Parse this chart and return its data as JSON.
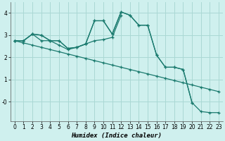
{
  "xlabel": "Humidex (Indice chaleur)",
  "bg_color": "#cff0ee",
  "grid_color": "#aad8d4",
  "line_color": "#1a7a6e",
  "x_values": [
    0,
    1,
    2,
    3,
    4,
    5,
    6,
    7,
    8,
    9,
    10,
    11,
    12,
    13,
    14,
    15,
    16,
    17,
    18,
    19,
    20,
    21,
    22,
    23
  ],
  "series1": [
    2.75,
    2.75,
    3.05,
    2.75,
    2.75,
    2.55,
    2.35,
    2.45,
    2.6,
    2.75,
    2.8,
    2.9,
    3.9,
    null,
    null,
    null,
    null,
    null,
    null,
    null,
    null,
    null,
    null,
    null
  ],
  "series2": [
    2.75,
    2.75,
    3.05,
    3.0,
    2.75,
    2.75,
    2.4,
    2.45,
    2.6,
    3.65,
    3.65,
    3.05,
    4.05,
    3.9,
    3.45,
    3.45,
    2.1,
    1.55,
    1.55,
    1.45,
    -0.05,
    null,
    null,
    null
  ],
  "series3": [
    2.75,
    2.75,
    3.05,
    3.0,
    2.75,
    2.75,
    2.4,
    2.45,
    2.6,
    3.65,
    3.65,
    3.05,
    4.05,
    3.9,
    3.45,
    3.45,
    2.1,
    1.55,
    1.55,
    1.45,
    -0.05,
    -0.45,
    -0.5,
    -0.5
  ],
  "series4": [
    2.75,
    2.65,
    2.55,
    2.45,
    2.35,
    2.25,
    2.15,
    2.05,
    1.95,
    1.85,
    1.75,
    1.65,
    1.55,
    1.45,
    1.35,
    1.25,
    1.15,
    1.05,
    0.95,
    0.85,
    0.75,
    0.65,
    0.55,
    0.45
  ],
  "ylim": [
    -0.9,
    4.5
  ],
  "xlim": [
    -0.5,
    23.5
  ],
  "yticks": [
    0,
    1,
    2,
    3,
    4
  ],
  "ytick_labels": [
    "-0",
    "1",
    "2",
    "3",
    "4"
  ]
}
